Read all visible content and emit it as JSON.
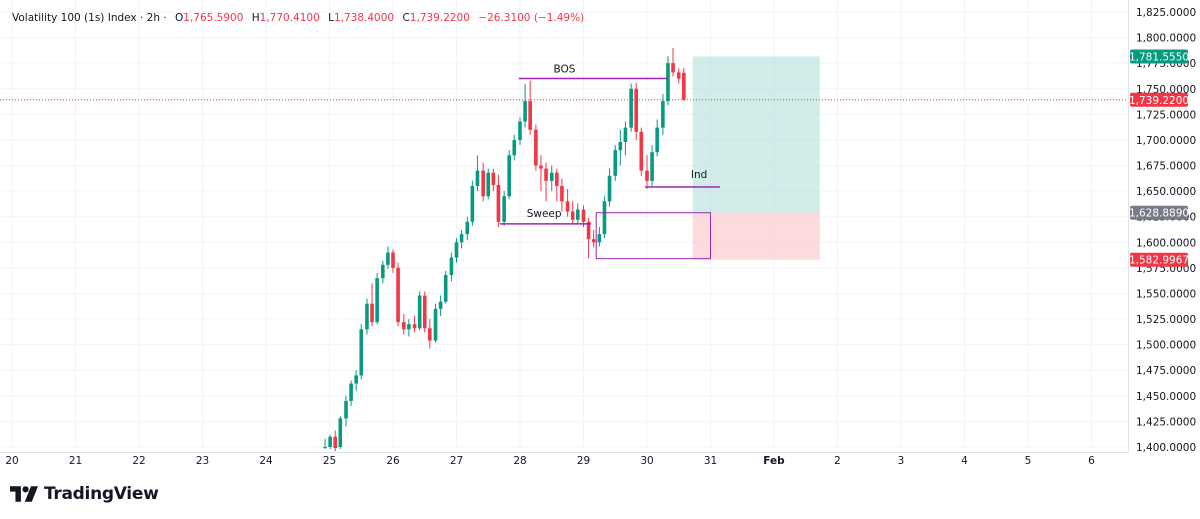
{
  "header": {
    "symbol": "Volatility 100 (1s) Index · 2h ·",
    "open_label": "O",
    "open": "1,765.5900",
    "high_label": "H",
    "high": "1,770.4100",
    "low_label": "L",
    "low": "1,738.4000",
    "close_label": "C",
    "close": "1,739.2200",
    "change": "−26.3100 (−1.49%)"
  },
  "branding": {
    "name": "TradingView",
    "logo_icon": "tradingview-logo-icon"
  },
  "colors": {
    "up": "#089981",
    "down": "#f23645",
    "drawing": "#9c27b0",
    "target_zone": "#b2dfdb",
    "stop_zone": "#fccbcd",
    "axis_text": "#131722"
  },
  "chart_data": {
    "type": "candlestick",
    "timeframe": "2h",
    "ylim": [
      1395,
      1830
    ],
    "y_ticks": [
      "1,825.0000",
      "1,800.0000",
      "1,775.0000",
      "1,750.0000",
      "1,725.0000",
      "1,700.0000",
      "1,675.0000",
      "1,650.0000",
      "1,625.0000",
      "1,600.0000",
      "1,575.0000",
      "1,550.0000",
      "1,525.0000",
      "1,500.0000",
      "1,475.0000",
      "1,450.0000",
      "1,425.0000",
      "1,400.0000"
    ],
    "y_tick_values": [
      1825,
      1800,
      1775,
      1750,
      1725,
      1700,
      1675,
      1650,
      1625,
      1600,
      1575,
      1550,
      1525,
      1500,
      1475,
      1450,
      1425,
      1400
    ],
    "x_ticks": [
      "20",
      "21",
      "22",
      "23",
      "24",
      "25",
      "26",
      "27",
      "28",
      "29",
      "30",
      "31",
      "Feb",
      "2",
      "3",
      "4",
      "5",
      "6"
    ],
    "price_labels": [
      {
        "value": "1,781.5550",
        "price": 1781.555,
        "color": "#089981"
      },
      {
        "value": "1,739.2200",
        "price": 1739.22,
        "color": "#f23645"
      },
      {
        "value": "1,628.8890",
        "price": 1628.889,
        "color": "#787b86"
      },
      {
        "value": "1,582.9967",
        "price": 1582.9967,
        "color": "#f23645"
      }
    ],
    "last_price": 1739.22,
    "annotations": [
      {
        "text": "BOS",
        "price": 1760
      },
      {
        "text": "Ind",
        "price": 1654
      },
      {
        "text": "Sweep",
        "price": 1618
      }
    ],
    "position": {
      "type": "long",
      "entry": 1628.889,
      "target": 1781.555,
      "stop": 1582.9967,
      "start_day": 30.72,
      "end_day": 32.72
    },
    "candles": [
      {
        "t": 24.93,
        "o": 1400,
        "h": 1408,
        "l": 1398,
        "c": 1400
      },
      {
        "t": 25.01,
        "o": 1400,
        "h": 1412,
        "l": 1398,
        "c": 1410
      },
      {
        "t": 25.09,
        "o": 1410,
        "h": 1416,
        "l": 1396,
        "c": 1399
      },
      {
        "t": 25.17,
        "o": 1400,
        "h": 1430,
        "l": 1398,
        "c": 1428
      },
      {
        "t": 25.26,
        "o": 1428,
        "h": 1450,
        "l": 1420,
        "c": 1445
      },
      {
        "t": 25.34,
        "o": 1445,
        "h": 1465,
        "l": 1440,
        "c": 1462
      },
      {
        "t": 25.42,
        "o": 1462,
        "h": 1475,
        "l": 1455,
        "c": 1470
      },
      {
        "t": 25.5,
        "o": 1470,
        "h": 1520,
        "l": 1466,
        "c": 1515
      },
      {
        "t": 25.59,
        "o": 1515,
        "h": 1545,
        "l": 1510,
        "c": 1540
      },
      {
        "t": 25.67,
        "o": 1540,
        "h": 1560,
        "l": 1518,
        "c": 1522
      },
      {
        "t": 25.75,
        "o": 1522,
        "h": 1570,
        "l": 1520,
        "c": 1565
      },
      {
        "t": 25.84,
        "o": 1565,
        "h": 1582,
        "l": 1560,
        "c": 1578
      },
      {
        "t": 25.92,
        "o": 1578,
        "h": 1596,
        "l": 1574,
        "c": 1590
      },
      {
        "t": 26.0,
        "o": 1590,
        "h": 1593,
        "l": 1570,
        "c": 1575
      },
      {
        "t": 26.08,
        "o": 1575,
        "h": 1580,
        "l": 1518,
        "c": 1522
      },
      {
        "t": 26.17,
        "o": 1522,
        "h": 1530,
        "l": 1510,
        "c": 1515
      },
      {
        "t": 26.25,
        "o": 1515,
        "h": 1525,
        "l": 1508,
        "c": 1520
      },
      {
        "t": 26.34,
        "o": 1520,
        "h": 1528,
        "l": 1512,
        "c": 1516
      },
      {
        "t": 26.42,
        "o": 1516,
        "h": 1552,
        "l": 1514,
        "c": 1548
      },
      {
        "t": 26.5,
        "o": 1548,
        "h": 1552,
        "l": 1512,
        "c": 1516
      },
      {
        "t": 26.58,
        "o": 1516,
        "h": 1525,
        "l": 1496,
        "c": 1504
      },
      {
        "t": 26.67,
        "o": 1504,
        "h": 1540,
        "l": 1502,
        "c": 1535
      },
      {
        "t": 26.75,
        "o": 1535,
        "h": 1548,
        "l": 1528,
        "c": 1542
      },
      {
        "t": 26.83,
        "o": 1542,
        "h": 1572,
        "l": 1540,
        "c": 1568
      },
      {
        "t": 26.92,
        "o": 1568,
        "h": 1590,
        "l": 1562,
        "c": 1585
      },
      {
        "t": 27.0,
        "o": 1585,
        "h": 1604,
        "l": 1580,
        "c": 1600
      },
      {
        "t": 27.08,
        "o": 1600,
        "h": 1612,
        "l": 1594,
        "c": 1608
      },
      {
        "t": 27.17,
        "o": 1608,
        "h": 1625,
        "l": 1602,
        "c": 1620
      },
      {
        "t": 27.25,
        "o": 1620,
        "h": 1660,
        "l": 1616,
        "c": 1655
      },
      {
        "t": 27.33,
        "o": 1655,
        "h": 1685,
        "l": 1650,
        "c": 1670
      },
      {
        "t": 27.42,
        "o": 1670,
        "h": 1678,
        "l": 1640,
        "c": 1645
      },
      {
        "t": 27.5,
        "o": 1645,
        "h": 1672,
        "l": 1642,
        "c": 1668
      },
      {
        "t": 27.58,
        "o": 1668,
        "h": 1672,
        "l": 1650,
        "c": 1656
      },
      {
        "t": 27.66,
        "o": 1656,
        "h": 1666,
        "l": 1615,
        "c": 1620
      },
      {
        "t": 27.75,
        "o": 1620,
        "h": 1650,
        "l": 1616,
        "c": 1645
      },
      {
        "t": 27.83,
        "o": 1645,
        "h": 1690,
        "l": 1642,
        "c": 1685
      },
      {
        "t": 27.91,
        "o": 1685,
        "h": 1705,
        "l": 1680,
        "c": 1700
      },
      {
        "t": 28.0,
        "o": 1700,
        "h": 1722,
        "l": 1695,
        "c": 1718
      },
      {
        "t": 28.08,
        "o": 1718,
        "h": 1755,
        "l": 1712,
        "c": 1738
      },
      {
        "t": 28.16,
        "o": 1738,
        "h": 1758,
        "l": 1705,
        "c": 1710
      },
      {
        "t": 28.25,
        "o": 1710,
        "h": 1715,
        "l": 1670,
        "c": 1675
      },
      {
        "t": 28.33,
        "o": 1675,
        "h": 1685,
        "l": 1650,
        "c": 1672
      },
      {
        "t": 28.41,
        "o": 1672,
        "h": 1678,
        "l": 1640,
        "c": 1660
      },
      {
        "t": 28.5,
        "o": 1660,
        "h": 1675,
        "l": 1650,
        "c": 1668
      },
      {
        "t": 28.58,
        "o": 1668,
        "h": 1672,
        "l": 1640,
        "c": 1655
      },
      {
        "t": 28.66,
        "o": 1655,
        "h": 1662,
        "l": 1630,
        "c": 1640
      },
      {
        "t": 28.75,
        "o": 1640,
        "h": 1652,
        "l": 1625,
        "c": 1630
      },
      {
        "t": 28.83,
        "o": 1630,
        "h": 1640,
        "l": 1618,
        "c": 1622
      },
      {
        "t": 28.91,
        "o": 1622,
        "h": 1638,
        "l": 1618,
        "c": 1632
      },
      {
        "t": 29.0,
        "o": 1632,
        "h": 1636,
        "l": 1615,
        "c": 1620
      },
      {
        "t": 29.08,
        "o": 1620,
        "h": 1624,
        "l": 1584,
        "c": 1603
      },
      {
        "t": 29.16,
        "o": 1603,
        "h": 1612,
        "l": 1595,
        "c": 1600
      },
      {
        "t": 29.25,
        "o": 1600,
        "h": 1615,
        "l": 1596,
        "c": 1608
      },
      {
        "t": 29.33,
        "o": 1608,
        "h": 1645,
        "l": 1604,
        "c": 1640
      },
      {
        "t": 29.41,
        "o": 1640,
        "h": 1672,
        "l": 1635,
        "c": 1665
      },
      {
        "t": 29.5,
        "o": 1665,
        "h": 1695,
        "l": 1660,
        "c": 1690
      },
      {
        "t": 29.58,
        "o": 1690,
        "h": 1710,
        "l": 1675,
        "c": 1698
      },
      {
        "t": 29.66,
        "o": 1698,
        "h": 1718,
        "l": 1685,
        "c": 1712
      },
      {
        "t": 29.75,
        "o": 1712,
        "h": 1755,
        "l": 1708,
        "c": 1750
      },
      {
        "t": 29.83,
        "o": 1750,
        "h": 1756,
        "l": 1700,
        "c": 1708
      },
      {
        "t": 29.91,
        "o": 1708,
        "h": 1712,
        "l": 1665,
        "c": 1670
      },
      {
        "t": 30.0,
        "o": 1670,
        "h": 1685,
        "l": 1652,
        "c": 1660
      },
      {
        "t": 30.08,
        "o": 1660,
        "h": 1695,
        "l": 1655,
        "c": 1688
      },
      {
        "t": 30.16,
        "o": 1688,
        "h": 1720,
        "l": 1684,
        "c": 1712
      },
      {
        "t": 30.25,
        "o": 1712,
        "h": 1745,
        "l": 1705,
        "c": 1738
      },
      {
        "t": 30.33,
        "o": 1738,
        "h": 1782,
        "l": 1734,
        "c": 1775
      },
      {
        "t": 30.41,
        "o": 1775,
        "h": 1790,
        "l": 1762,
        "c": 1766
      },
      {
        "t": 30.5,
        "o": 1766,
        "h": 1770,
        "l": 1755,
        "c": 1760
      },
      {
        "t": 30.58,
        "o": 1765.59,
        "h": 1770.41,
        "l": 1738.4,
        "c": 1739.22
      }
    ]
  }
}
